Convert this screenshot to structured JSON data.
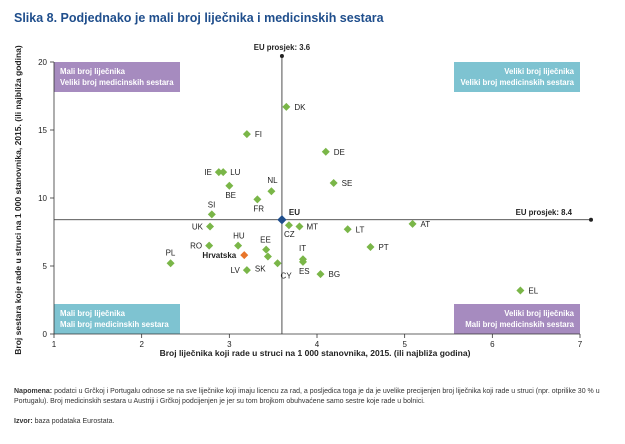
{
  "figure_title": "Slika 8. Podjednako je mali broj liječnika i medicinskih sestara",
  "note_label": "Napomena:",
  "note_text": "podatci u Grčkoj i Portugalu odnose se na sve liječnike koji imaju licencu za rad, a posljedica toga je da je uvelike precijenjen broj liječnika koji rade u struci (npr. otprilike 30 % u Portugalu). Broj medicinskih sestara u Austriji i Grčkoj podcijenjen je jer su tom brojkom obuhvaćene samo sestre koje rade u bolnici.",
  "source_label": "Izvor:",
  "source_text": "baza podataka Eurostata.",
  "chart_data": {
    "type": "scatter",
    "xlabel": "Broj liječnika koji rade u struci na 1 000 stanovnika, 2015. (ili najbliža godina)",
    "ylabel": "Broj sestara koje rade u struci na 1 000 stanovnika, 2015. (ili najbliža godina)",
    "xlim": [
      1,
      7
    ],
    "ylim": [
      0,
      20
    ],
    "x_ticks": [
      1,
      2,
      3,
      4,
      5,
      6,
      7
    ],
    "y_ticks": [
      0,
      5,
      10,
      15,
      20
    ],
    "grid": false,
    "reference_lines": [
      {
        "axis": "x",
        "value": 3.6,
        "label": "EU prosjek: 3.6"
      },
      {
        "axis": "y",
        "value": 8.4,
        "label": "EU prosjek: 8.4"
      }
    ],
    "quadrant_labels": [
      {
        "position": "top-left",
        "lines": [
          "Mali broj liječnika",
          "Veliki broj medicinskih sestara"
        ],
        "color": "#a68bbf"
      },
      {
        "position": "top-right",
        "lines": [
          "Veliki broj liječnika",
          "Veliki broj medicinskih sestara"
        ],
        "color": "#7ec3d1"
      },
      {
        "position": "bottom-left",
        "lines": [
          "Mali broj liječnika",
          "Mali broj medicinskih sestara"
        ],
        "color": "#7ec3d1"
      },
      {
        "position": "bottom-right",
        "lines": [
          "Veliki broj liječnika",
          "Mali broj medicinskih sestara"
        ],
        "color": "#a68bbf"
      }
    ],
    "colors": {
      "country": "#7ab648",
      "eu": "#1f4e8c",
      "croatia": "#e8752a",
      "axis": "#333333"
    },
    "points": [
      {
        "label": "DK",
        "x": 3.65,
        "y": 16.7
      },
      {
        "label": "FI",
        "x": 3.2,
        "y": 14.7
      },
      {
        "label": "DE",
        "x": 4.1,
        "y": 13.4
      },
      {
        "label": "IE",
        "x": 2.88,
        "y": 11.9
      },
      {
        "label": "LU",
        "x": 2.93,
        "y": 11.9
      },
      {
        "label": "SE",
        "x": 4.19,
        "y": 11.1
      },
      {
        "label": "NL",
        "x": 3.48,
        "y": 10.5
      },
      {
        "label": "BE",
        "x": 3.0,
        "y": 10.9
      },
      {
        "label": "FR",
        "x": 3.32,
        "y": 9.9
      },
      {
        "label": "SI",
        "x": 2.8,
        "y": 8.8
      },
      {
        "label": "UK",
        "x": 2.78,
        "y": 7.9
      },
      {
        "label": "MT",
        "x": 3.8,
        "y": 7.9
      },
      {
        "label": "CZ",
        "x": 3.68,
        "y": 8.0
      },
      {
        "label": "LT",
        "x": 4.35,
        "y": 7.7
      },
      {
        "label": "AT",
        "x": 5.09,
        "y": 8.1
      },
      {
        "label": "HU",
        "x": 3.1,
        "y": 6.5
      },
      {
        "label": "RO",
        "x": 2.77,
        "y": 6.5
      },
      {
        "label": "EE",
        "x": 3.42,
        "y": 6.2
      },
      {
        "label": "PT",
        "x": 4.61,
        "y": 6.4
      },
      {
        "label": "IT",
        "x": 3.84,
        "y": 5.5
      },
      {
        "label": "ES",
        "x": 3.84,
        "y": 5.3
      },
      {
        "label": "SK",
        "x": 3.44,
        "y": 5.7
      },
      {
        "label": "CY",
        "x": 3.55,
        "y": 5.2
      },
      {
        "label": "PL",
        "x": 2.33,
        "y": 5.2
      },
      {
        "label": "LV",
        "x": 3.2,
        "y": 4.7
      },
      {
        "label": "BG",
        "x": 4.04,
        "y": 4.4
      },
      {
        "label": "EL",
        "x": 6.32,
        "y": 3.2
      },
      {
        "label": "Hrvatska",
        "x": 3.17,
        "y": 5.8,
        "highlight": "croatia"
      },
      {
        "label": "EU",
        "x": 3.6,
        "y": 8.4,
        "highlight": "eu"
      }
    ]
  }
}
